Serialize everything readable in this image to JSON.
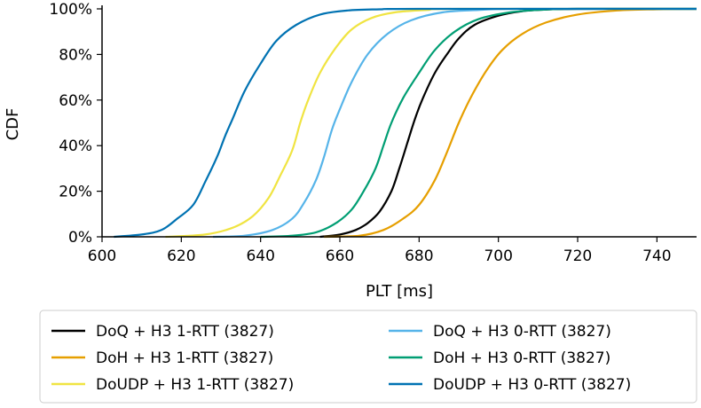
{
  "chart_data": {
    "type": "line",
    "title": "",
    "xlabel": "PLT [ms]",
    "ylabel": "CDF",
    "xlim": [
      600,
      750
    ],
    "ylim": [
      0,
      100
    ],
    "xticks": [
      "600",
      "620",
      "640",
      "660",
      "680",
      "700",
      "720",
      "740"
    ],
    "yticks": [
      "0%",
      "20%",
      "40%",
      "60%",
      "80%",
      "100%"
    ],
    "grid": false,
    "legend_position": "bottom",
    "series": [
      {
        "name": "DoQ + H3 1-RTT (3827)",
        "color": "#000000",
        "x": [
          655,
          660,
          664,
          667,
          670,
          673,
          675,
          677,
          679,
          681,
          684,
          687,
          690,
          694,
          700,
          706,
          712,
          720
        ],
        "y": [
          0,
          1,
          3,
          6,
          11,
          20,
          30,
          41,
          52,
          61,
          72,
          80,
          87,
          93,
          97,
          99,
          99.7,
          100
        ]
      },
      {
        "name": "DoH + H3 1-RTT (3827)",
        "color": "#E69F00",
        "x": [
          656,
          665,
          671,
          676,
          680,
          684,
          687,
          690,
          693,
          697,
          701,
          706,
          712,
          720,
          730,
          740,
          750
        ],
        "y": [
          0,
          0.5,
          3,
          8,
          14,
          25,
          37,
          50,
          61,
          73,
          82,
          89,
          94,
          97.5,
          99.3,
          99.8,
          100
        ]
      },
      {
        "name": "DoUDP + H3 1-RTT (3827)",
        "color": "#F0E442",
        "x": [
          616,
          626,
          633,
          638,
          642,
          645,
          648,
          650,
          652,
          655,
          659,
          663,
          668,
          674,
          682,
          690
        ],
        "y": [
          0,
          1,
          4,
          9,
          17,
          27,
          38,
          50,
          60,
          72,
          83,
          91,
          96,
          98.5,
          99.5,
          100
        ]
      },
      {
        "name": "DoQ + H3 0-RTT (3827)",
        "color": "#56B4E9",
        "x": [
          628,
          636,
          643,
          648,
          651,
          654,
          656,
          658,
          660,
          663,
          667,
          672,
          678,
          686,
          695,
          705
        ],
        "y": [
          0,
          0.5,
          3,
          8,
          15,
          25,
          35,
          47,
          56,
          68,
          80,
          89,
          95,
          98.5,
          99.5,
          100
        ]
      },
      {
        "name": "DoH + H3 0-RTT (3827)",
        "color": "#009E73",
        "x": [
          640,
          648,
          654,
          659,
          663,
          666,
          669,
          671,
          673,
          676,
          680,
          684,
          689,
          695,
          703,
          712,
          720
        ],
        "y": [
          0,
          0.5,
          2,
          6,
          12,
          20,
          30,
          40,
          50,
          61,
          72,
          82,
          90,
          95.5,
          98.5,
          99.7,
          100
        ]
      },
      {
        "name": "DoUDP + H3 0-RTT (3827)",
        "color": "#0072B2",
        "x": [
          603,
          610,
          615,
          619,
          623,
          626,
          629,
          631,
          633,
          636,
          640,
          644,
          649,
          655,
          662,
          670,
          680
        ],
        "y": [
          0,
          1,
          3,
          8,
          14,
          24,
          35,
          44,
          52,
          64,
          76,
          86,
          93,
          97.5,
          99.3,
          99.8,
          100
        ]
      }
    ]
  }
}
